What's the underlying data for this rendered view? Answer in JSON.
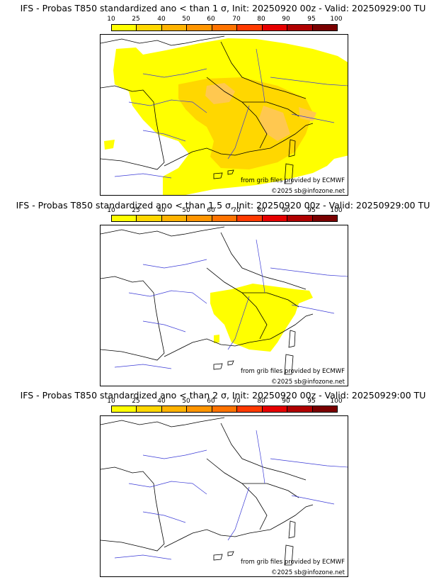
{
  "panels": [
    {
      "title": "IFS - Probas T850  standardized ano < than 1 σ, Init: 20250920 00z - Valid: 20250929:00 TU"
    },
    {
      "title": "IFS - Probas T850  standardized ano < than 1.5 σ, Init: 20250920 00z - Valid: 20250929:00 TU"
    },
    {
      "title": "IFS - Probas T850  standardized ano < than 2 σ, Init: 20250920 00z - Valid: 20250929:00 TU"
    }
  ],
  "colorbar": {
    "ticks": [
      "10",
      "25",
      "40",
      "50",
      "60",
      "70",
      "80",
      "90",
      "95",
      "100"
    ],
    "colors": [
      "#ffff00",
      "#ffd700",
      "#ffb300",
      "#ff9500",
      "#ff7300",
      "#ff3a00",
      "#e60000",
      "#b00000",
      "#7a0000"
    ]
  },
  "credits": {
    "source": "from grib files provided by ECMWF",
    "copyright": "©2025 sb@infozone.net"
  }
}
